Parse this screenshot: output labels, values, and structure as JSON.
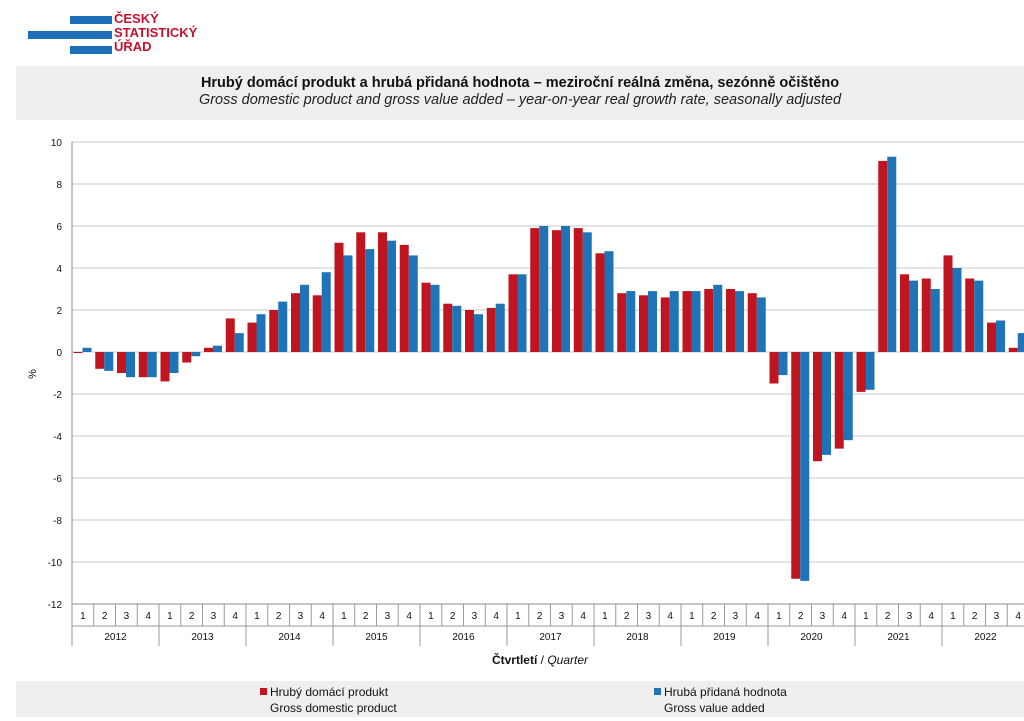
{
  "logo": {
    "line1": "ČESKÝ",
    "line2": "STATISTICKÝ",
    "line3": "ÚŘAD"
  },
  "colors": {
    "gdp": "#c0151f",
    "gva": "#1f74b8",
    "grid": "#c8c8c8",
    "axis": "#888888"
  },
  "chart_data": {
    "type": "bar",
    "title": "Hrubý domácí produkt a hrubá přidaná hodnota – meziroční reálná změna, sezónně očištěno",
    "subtitle": "Gross domestic product and gross value added – year-on-year real growth  rate, seasonally adjusted",
    "ylabel": "%",
    "xlabel_cz": "Čtvrtletí",
    "xlabel_sep": "/",
    "xlabel_en": "Quarter",
    "ylim": [
      -12,
      10
    ],
    "yticks": [
      -12,
      -10,
      -8,
      -6,
      -4,
      -2,
      0,
      2,
      4,
      6,
      8,
      10
    ],
    "grid": true,
    "legend_position": "bottom",
    "categories": [
      "1",
      "2",
      "3",
      "4",
      "1",
      "2",
      "3",
      "4",
      "1",
      "2",
      "3",
      "4",
      "1",
      "2",
      "3",
      "4",
      "1",
      "2",
      "3",
      "4",
      "1",
      "2",
      "3",
      "4",
      "1",
      "2",
      "3",
      "4",
      "1",
      "2",
      "3",
      "4",
      "1",
      "2",
      "3",
      "4",
      "1",
      "2",
      "3",
      "4",
      "1",
      "2",
      "3",
      "4"
    ],
    "years": [
      "2012",
      "2013",
      "2014",
      "2015",
      "2016",
      "2017",
      "2018",
      "2019",
      "2020",
      "2021",
      "2022"
    ],
    "series": [
      {
        "name": "Hrubý domácí produkt",
        "name_en": "Gross domestic product",
        "color": "#c0151f",
        "values": [
          0.0,
          -0.8,
          -1.0,
          -1.2,
          -1.4,
          -0.5,
          0.2,
          1.6,
          1.4,
          2.0,
          2.8,
          2.7,
          5.2,
          5.7,
          5.7,
          5.1,
          3.3,
          2.3,
          2.0,
          2.1,
          3.7,
          5.9,
          5.8,
          5.9,
          4.7,
          2.8,
          2.7,
          2.6,
          2.9,
          3.0,
          3.0,
          2.8,
          -1.5,
          -10.8,
          -5.2,
          -4.6,
          -1.9,
          9.1,
          3.7,
          3.5,
          4.6,
          3.5,
          1.4,
          0.2
        ]
      },
      {
        "name": "Hrubá přidaná hodnota",
        "name_en": "Gross value added",
        "color": "#1f74b8",
        "values": [
          0.2,
          -0.9,
          -1.2,
          -1.2,
          -1.0,
          -0.2,
          0.3,
          0.9,
          1.8,
          2.4,
          3.2,
          3.8,
          4.6,
          4.9,
          5.3,
          4.6,
          3.2,
          2.2,
          1.8,
          2.3,
          3.7,
          6.0,
          6.0,
          5.7,
          4.8,
          2.9,
          2.9,
          2.9,
          2.9,
          3.2,
          2.9,
          2.6,
          -1.1,
          -10.9,
          -4.9,
          -4.2,
          -1.8,
          9.3,
          3.4,
          3.0,
          4.0,
          3.4,
          1.5,
          0.9
        ]
      }
    ]
  }
}
